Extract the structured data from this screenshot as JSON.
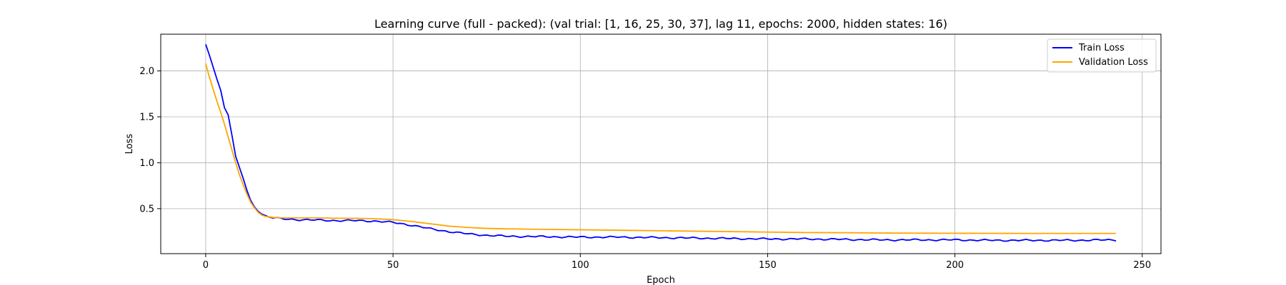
{
  "chart_data": {
    "type": "line",
    "title": "Learning curve (full - packed): (val trial: [1, 16, 25, 30, 37], lag 11, epochs: 2000, hidden states: 16)",
    "xlabel": "Epoch",
    "ylabel": "Loss",
    "xlim": [
      -12,
      255
    ],
    "ylim": [
      0.01,
      2.4
    ],
    "xticks": [
      0,
      50,
      100,
      150,
      200,
      250
    ],
    "xtick_labels": [
      "0",
      "50",
      "100",
      "150",
      "200",
      "250"
    ],
    "yticks": [
      0.5,
      1.0,
      1.5,
      2.0
    ],
    "ytick_labels": [
      "0.5",
      "1.0",
      "1.5",
      "2.0"
    ],
    "grid": true,
    "legend_position": "top-right",
    "series": [
      {
        "name": "Train Loss",
        "color": "#0000ff",
        "keypoints": [
          [
            0,
            2.29
          ],
          [
            1,
            2.17
          ],
          [
            2,
            2.04
          ],
          [
            3,
            1.91
          ],
          [
            4,
            1.79
          ],
          [
            5,
            1.6
          ],
          [
            6,
            1.52
          ],
          [
            7,
            1.3
          ],
          [
            8,
            1.07
          ],
          [
            9,
            0.95
          ],
          [
            10,
            0.83
          ],
          [
            11,
            0.7
          ],
          [
            12,
            0.59
          ],
          [
            13,
            0.52
          ],
          [
            14,
            0.47
          ],
          [
            15,
            0.44
          ],
          [
            16,
            0.42
          ],
          [
            17,
            0.41
          ],
          [
            18,
            0.4
          ],
          [
            20,
            0.39
          ],
          [
            25,
            0.38
          ],
          [
            30,
            0.375
          ],
          [
            35,
            0.37
          ],
          [
            40,
            0.37
          ],
          [
            45,
            0.365
          ],
          [
            50,
            0.35
          ],
          [
            55,
            0.32
          ],
          [
            60,
            0.28
          ],
          [
            65,
            0.25
          ],
          [
            70,
            0.225
          ],
          [
            75,
            0.21
          ],
          [
            80,
            0.2
          ],
          [
            90,
            0.195
          ],
          [
            100,
            0.19
          ],
          [
            110,
            0.19
          ],
          [
            120,
            0.185
          ],
          [
            130,
            0.18
          ],
          [
            140,
            0.175
          ],
          [
            150,
            0.17
          ],
          [
            160,
            0.17
          ],
          [
            170,
            0.165
          ],
          [
            180,
            0.16
          ],
          [
            190,
            0.16
          ],
          [
            200,
            0.16
          ],
          [
            210,
            0.155
          ],
          [
            220,
            0.155
          ],
          [
            230,
            0.155
          ],
          [
            243,
            0.16
          ]
        ],
        "noise": 0.007
      },
      {
        "name": "Validation Loss",
        "color": "#ffa500",
        "keypoints": [
          [
            0,
            2.08
          ],
          [
            1,
            1.93
          ],
          [
            2,
            1.8
          ],
          [
            3,
            1.67
          ],
          [
            4,
            1.55
          ],
          [
            5,
            1.42
          ],
          [
            6,
            1.28
          ],
          [
            7,
            1.14
          ],
          [
            8,
            1.0
          ],
          [
            9,
            0.87
          ],
          [
            10,
            0.76
          ],
          [
            11,
            0.66
          ],
          [
            12,
            0.57
          ],
          [
            13,
            0.51
          ],
          [
            14,
            0.46
          ],
          [
            15,
            0.43
          ],
          [
            16,
            0.415
          ],
          [
            18,
            0.405
          ],
          [
            20,
            0.4
          ],
          [
            25,
            0.4
          ],
          [
            30,
            0.4
          ],
          [
            35,
            0.395
          ],
          [
            40,
            0.395
          ],
          [
            45,
            0.39
          ],
          [
            50,
            0.38
          ],
          [
            55,
            0.36
          ],
          [
            60,
            0.335
          ],
          [
            65,
            0.31
          ],
          [
            70,
            0.295
          ],
          [
            75,
            0.285
          ],
          [
            80,
            0.28
          ],
          [
            90,
            0.275
          ],
          [
            100,
            0.27
          ],
          [
            110,
            0.265
          ],
          [
            120,
            0.26
          ],
          [
            130,
            0.255
          ],
          [
            140,
            0.25
          ],
          [
            150,
            0.245
          ],
          [
            160,
            0.24
          ],
          [
            170,
            0.238
          ],
          [
            180,
            0.235
          ],
          [
            190,
            0.233
          ],
          [
            200,
            0.232
          ],
          [
            210,
            0.231
          ],
          [
            220,
            0.23
          ],
          [
            230,
            0.23
          ],
          [
            243,
            0.23
          ]
        ],
        "noise": 0
      }
    ]
  }
}
